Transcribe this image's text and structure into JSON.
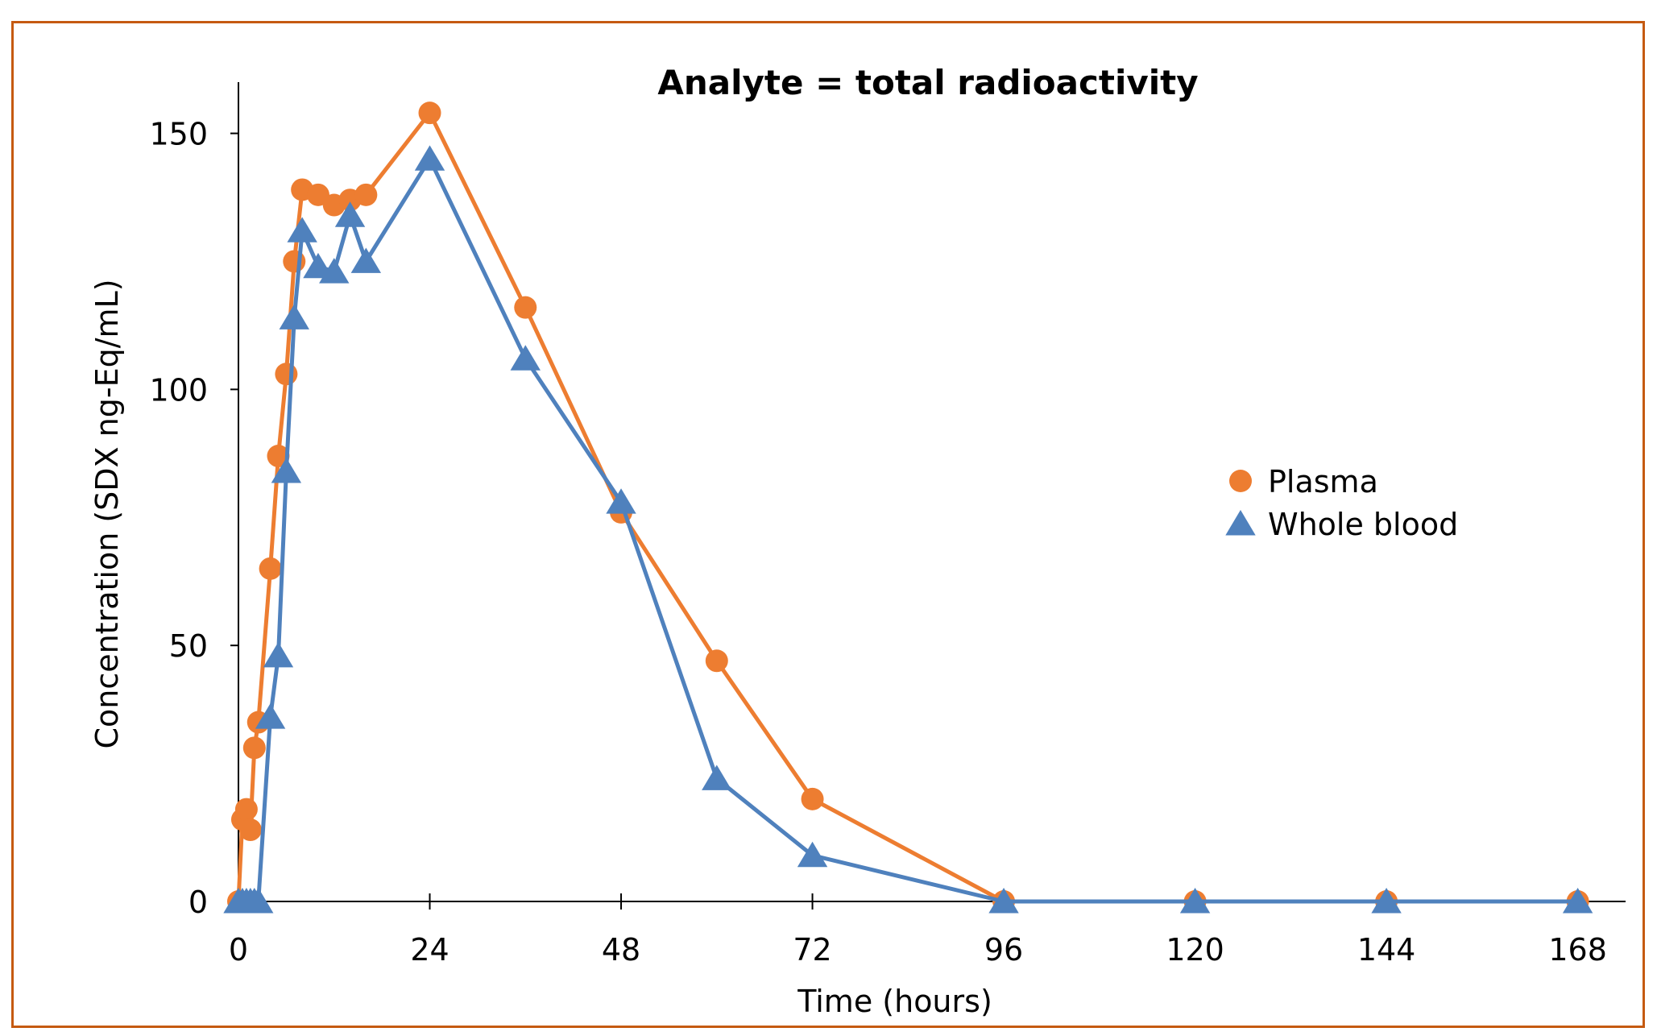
{
  "chart_data": {
    "type": "line",
    "title": "Analyte = total radioactivity",
    "xlabel": "Time (hours)",
    "ylabel": "Concentration (SDX ng-Eq/mL)",
    "xlim": [
      0,
      174
    ],
    "ylim": [
      0,
      160
    ],
    "xticks": [
      0,
      24,
      48,
      72,
      96,
      120,
      144,
      168
    ],
    "yticks": [
      0,
      50,
      100,
      150
    ],
    "xtick_labels": [
      "0",
      "24",
      "48",
      "72",
      "96",
      "120",
      "144",
      "168"
    ],
    "ytick_labels": [
      "0",
      "50",
      "100",
      "150"
    ],
    "legend_position": "right",
    "grid": false,
    "series": [
      {
        "name": "Plasma",
        "color": "#ED7D31",
        "marker": "circle",
        "x": [
          0,
          0.5,
          1,
          1.5,
          2,
          2.5,
          4,
          5,
          6,
          7,
          8,
          10,
          12,
          14,
          16,
          24,
          36,
          48,
          60,
          72,
          96,
          120,
          144,
          168
        ],
        "y": [
          0,
          16,
          18,
          14,
          30,
          35,
          65,
          87,
          103,
          125,
          139,
          138,
          136,
          137,
          138,
          154,
          116,
          76,
          47,
          20,
          0,
          0,
          0,
          0
        ]
      },
      {
        "name": "Whole blood",
        "color": "#4F81BD",
        "marker": "triangle",
        "x": [
          0,
          0.5,
          1,
          1.5,
          2,
          2.5,
          4,
          5,
          6,
          7,
          8,
          10,
          12,
          14,
          16,
          24,
          36,
          48,
          60,
          72,
          96,
          120,
          144,
          168
        ],
        "y": [
          0,
          0,
          0,
          0,
          0,
          0,
          36,
          48,
          84,
          114,
          131,
          124,
          123,
          134,
          125,
          145,
          106,
          78,
          24,
          9,
          0,
          0,
          0,
          0
        ]
      }
    ]
  }
}
